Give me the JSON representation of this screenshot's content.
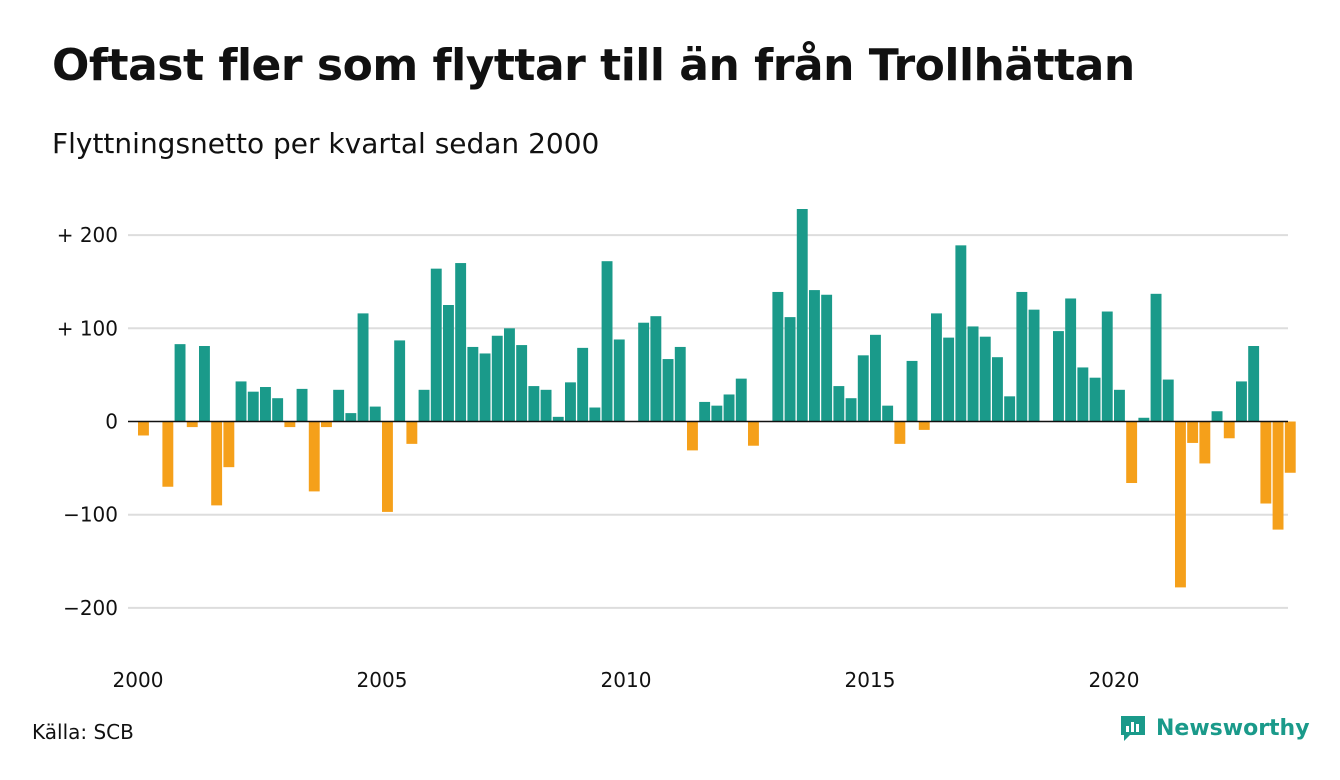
{
  "title": "Oftast fler som flyttar till än från Trollhättan",
  "subtitle": "Flyttningsnetto per kvartal sedan 2000",
  "source": "Källa: SCB",
  "brand": {
    "name": "Newsworthy",
    "icon": "newsworthy-logo-icon",
    "color": "#1a9a8a"
  },
  "colors": {
    "positive": "#1a9a8a",
    "negative": "#f5a01a",
    "grid": "#dddddd",
    "zero": "#111111"
  },
  "chart_data": {
    "type": "bar",
    "xlabel": "",
    "ylabel": "",
    "ylim": [
      -230,
      230
    ],
    "y_ticks": [
      {
        "value": 200,
        "label": "+ 200"
      },
      {
        "value": 100,
        "label": "+ 100"
      },
      {
        "value": 0,
        "label": "0"
      },
      {
        "value": -100,
        "label": "−100"
      },
      {
        "value": -200,
        "label": "−200"
      }
    ],
    "x_ticks": [
      {
        "year": 2000,
        "label": "2000"
      },
      {
        "year": 2005,
        "label": "2005"
      },
      {
        "year": 2010,
        "label": "2010"
      },
      {
        "year": 2015,
        "label": "2015"
      },
      {
        "year": 2020,
        "label": "2020"
      }
    ],
    "grid": true,
    "start_year": 2000,
    "bars_per_year": 4,
    "values": [
      -15,
      0,
      -70,
      83,
      -6,
      81,
      -90,
      -49,
      43,
      32,
      37,
      25,
      -6,
      35,
      -75,
      -6,
      34,
      9,
      116,
      16,
      -97,
      87,
      -24,
      34,
      164,
      125,
      170,
      80,
      73,
      92,
      100,
      82,
      38,
      34,
      5,
      42,
      79,
      15,
      172,
      88,
      0,
      106,
      113,
      67,
      80,
      -31,
      21,
      17,
      29,
      46,
      -26,
      0,
      139,
      112,
      228,
      141,
      136,
      38,
      25,
      71,
      93,
      17,
      -24,
      65,
      -9,
      116,
      90,
      189,
      102,
      91,
      69,
      27,
      139,
      120,
      0,
      97,
      132,
      58,
      47,
      118,
      34,
      -66,
      4,
      137,
      45,
      -178,
      -23,
      -45,
      11,
      -18,
      43,
      81,
      -88,
      -116,
      -55
    ]
  }
}
